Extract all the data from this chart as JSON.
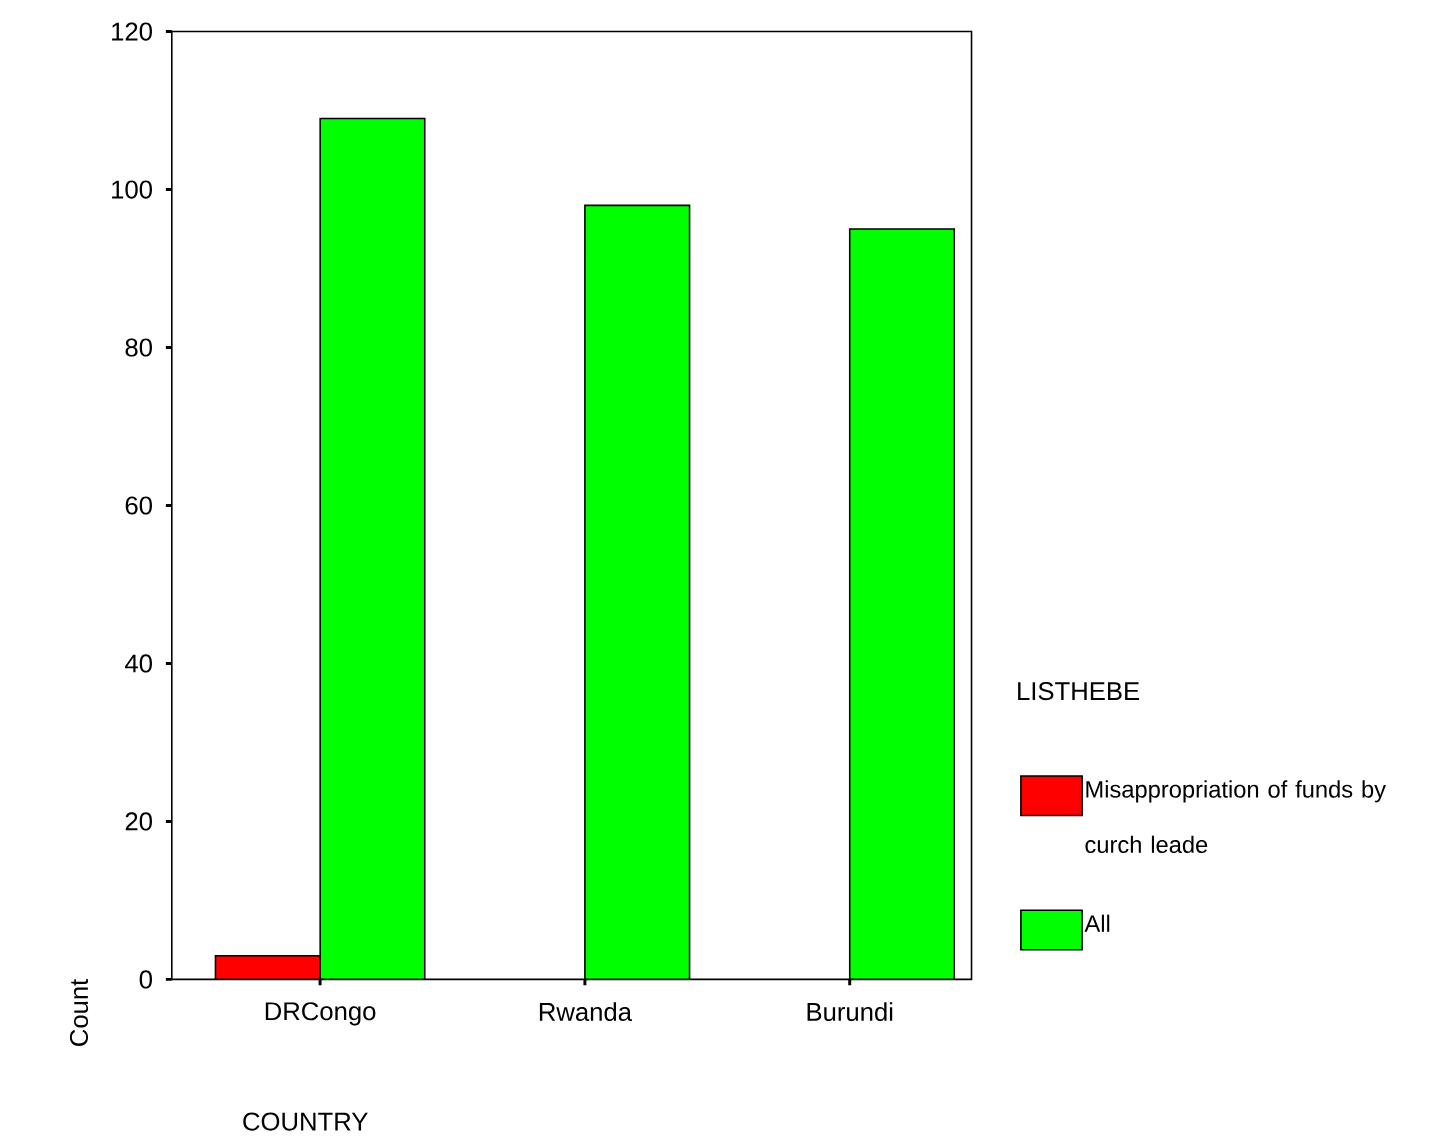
{
  "chart_data": {
    "type": "bar",
    "xlabel": "COUNTRY",
    "ylabel": "Count",
    "legend_title": "LISTHEBE",
    "categories": [
      "DRCongo",
      "Rwanda",
      "Burundi"
    ],
    "series": [
      {
        "name": "Misappropriation of funds by curch leade",
        "color": "#ff0000",
        "values": [
          3,
          null,
          null
        ]
      },
      {
        "name": "All",
        "color": "#00ff00",
        "values": [
          109,
          98,
          95
        ]
      }
    ],
    "ylim": [
      0,
      120
    ],
    "yticks": [
      0,
      20,
      40,
      60,
      80,
      100,
      120
    ],
    "grid": false,
    "legend": "right"
  }
}
